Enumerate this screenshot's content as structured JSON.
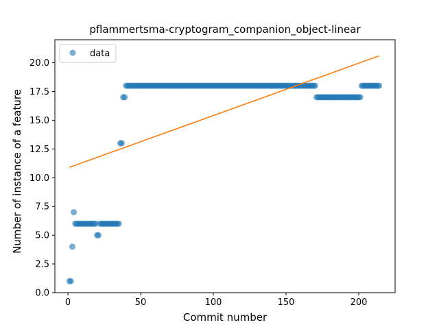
{
  "chart_data": {
    "type": "scatter",
    "title": "pflammertsma-cryptogram_companion_object-linear",
    "xlabel": "Commit number",
    "ylabel": "Number of instance of a feature",
    "xlim": [
      -9,
      225
    ],
    "ylim": [
      0,
      22
    ],
    "xticks": [
      0,
      50,
      100,
      150,
      200
    ],
    "yticks": [
      0.0,
      2.5,
      5.0,
      7.5,
      10.0,
      12.5,
      15.0,
      17.5,
      20.0
    ],
    "xtick_labels": [
      "0",
      "50",
      "100",
      "150",
      "200"
    ],
    "ytick_labels": [
      "0.0",
      "2.5",
      "5.0",
      "7.5",
      "10.0",
      "12.5",
      "15.0",
      "17.5",
      "20.0"
    ],
    "grid": false,
    "legend": {
      "position": "top-left",
      "entries": [
        "data"
      ]
    },
    "colors": {
      "data": "#1f77b4",
      "fit": "#ff7f0e"
    },
    "series": [
      {
        "name": "data",
        "kind": "scatter",
        "segments": [
          {
            "x_start": 1,
            "x_end": 2,
            "y": 1
          },
          {
            "x_start": 3,
            "x_end": 3,
            "y": 4
          },
          {
            "x_start": 4,
            "x_end": 4,
            "y": 7
          },
          {
            "x_start": 5,
            "x_end": 19,
            "y": 6
          },
          {
            "x_start": 20,
            "x_end": 21,
            "y": 5
          },
          {
            "x_start": 22,
            "x_end": 35,
            "y": 6
          },
          {
            "x_start": 36,
            "x_end": 37,
            "y": 13
          },
          {
            "x_start": 38,
            "x_end": 39,
            "y": 17
          },
          {
            "x_start": 40,
            "x_end": 170,
            "y": 18
          },
          {
            "x_start": 171,
            "x_end": 201,
            "y": 17
          },
          {
            "x_start": 202,
            "x_end": 214,
            "y": 18
          }
        ]
      },
      {
        "kind": "line",
        "x": [
          1,
          214
        ],
        "y": [
          10.9,
          20.6
        ]
      }
    ]
  }
}
